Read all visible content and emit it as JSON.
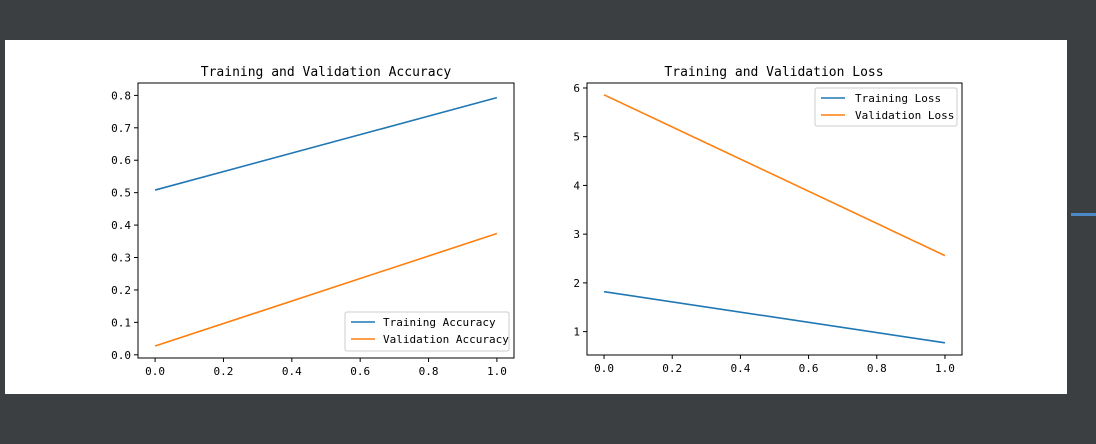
{
  "chart_data": [
    {
      "type": "line",
      "title": "Training and Validation Accuracy",
      "xlabel": "",
      "ylabel": "",
      "xlim": [
        -0.05,
        1.05
      ],
      "ylim": [
        -0.0099,
        0.8382
      ],
      "xticks": [
        0.0,
        0.2,
        0.4,
        0.6,
        0.8,
        1.0
      ],
      "xtick_labels": [
        "0.0",
        "0.2",
        "0.4",
        "0.6",
        "0.8",
        "1.0"
      ],
      "yticks": [
        0.0,
        0.1,
        0.2,
        0.3,
        0.4,
        0.5,
        0.6,
        0.7,
        0.8
      ],
      "ytick_labels": [
        "0.0",
        "0.1",
        "0.2",
        "0.3",
        "0.4",
        "0.5",
        "0.6",
        "0.7",
        "0.8"
      ],
      "grid": false,
      "legend_position": "lower-right",
      "series": [
        {
          "name": "Training Accuracy",
          "color": "#1f77b4",
          "x": [
            0,
            1
          ],
          "y": [
            0.508,
            0.793
          ]
        },
        {
          "name": "Validation Accuracy",
          "color": "#ff7f0e",
          "x": [
            0,
            1
          ],
          "y": [
            0.027,
            0.374
          ]
        }
      ]
    },
    {
      "type": "line",
      "title": "Training and Validation Loss",
      "xlabel": "",
      "ylabel": "",
      "xlim": [
        -0.05,
        1.05
      ],
      "ylim": [
        0.5199,
        6.1021
      ],
      "xticks": [
        0.0,
        0.2,
        0.4,
        0.6,
        0.8,
        1.0
      ],
      "xtick_labels": [
        "0.0",
        "0.2",
        "0.4",
        "0.6",
        "0.8",
        "1.0"
      ],
      "yticks": [
        1,
        2,
        3,
        4,
        5,
        6
      ],
      "ytick_labels": [
        "1",
        "2",
        "3",
        "4",
        "5",
        "6"
      ],
      "grid": false,
      "legend_position": "upper-right",
      "series": [
        {
          "name": "Training Loss",
          "color": "#1f77b4",
          "x": [
            0,
            1
          ],
          "y": [
            1.82,
            0.77
          ]
        },
        {
          "name": "Validation Loss",
          "color": "#ff7f0e",
          "x": [
            0,
            1
          ],
          "y": [
            5.86,
            2.56
          ]
        }
      ]
    }
  ]
}
